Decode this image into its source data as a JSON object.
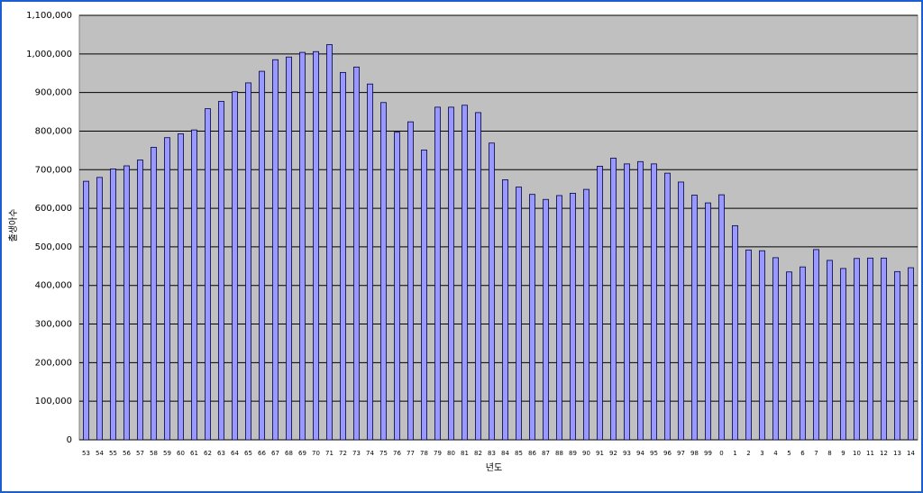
{
  "chart_data": {
    "type": "bar",
    "y_label": "출생아수",
    "x_label": "년도",
    "categories": [
      "53",
      "54",
      "55",
      "56",
      "57",
      "58",
      "59",
      "60",
      "61",
      "62",
      "63",
      "64",
      "65",
      "66",
      "67",
      "68",
      "69",
      "70",
      "71",
      "72",
      "73",
      "74",
      "75",
      "76",
      "77",
      "78",
      "79",
      "80",
      "81",
      "82",
      "83",
      "84",
      "85",
      "86",
      "87",
      "88",
      "89",
      "90",
      "91",
      "92",
      "93",
      "94",
      "95",
      "96",
      "97",
      "98",
      "99",
      "0",
      "1",
      "2",
      "3",
      "4",
      "5",
      "6",
      "7",
      "8",
      "9",
      "10",
      "11",
      "12",
      "13",
      "14"
    ],
    "values": [
      670000,
      680000,
      702000,
      710000,
      725000,
      758000,
      783000,
      793000,
      803000,
      858000,
      877000,
      902000,
      925000,
      955000,
      985000,
      992000,
      1004000,
      1006000,
      1024000,
      952000,
      966000,
      922000,
      874000,
      797000,
      824000,
      751000,
      862000,
      862000,
      867000,
      848000,
      769000,
      674000,
      655000,
      636000,
      623000,
      633000,
      639000,
      649000,
      709000,
      730000,
      715000,
      721000,
      715000,
      691000,
      668000,
      634000,
      614000,
      635000,
      555000,
      492000,
      490000,
      472000,
      435000,
      448000,
      493000,
      465000,
      444000,
      470000,
      471000,
      471000,
      436000,
      446000
    ],
    "color": "#9999ff",
    "ylim": [
      0,
      1100000
    ],
    "yticks": [
      0,
      {
        "value": 100000,
        "label": "100,000"
      },
      {
        "value": 200000,
        "label": "200,000"
      },
      {
        "value": 300000,
        "label": "300,000"
      },
      {
        "value": 400000,
        "label": "400,000"
      },
      {
        "value": 500000,
        "label": "500,000"
      },
      {
        "value": 600000,
        "label": "600,000"
      },
      {
        "value": 700000,
        "label": "700,000"
      },
      {
        "value": 800000,
        "label": "800,000"
      },
      {
        "value": 900000,
        "label": "900,000"
      },
      {
        "value": 1000000,
        "label": "1,000,000"
      },
      {
        "value": 1100000,
        "label": "1,100,000"
      }
    ],
    "grid": true
  }
}
